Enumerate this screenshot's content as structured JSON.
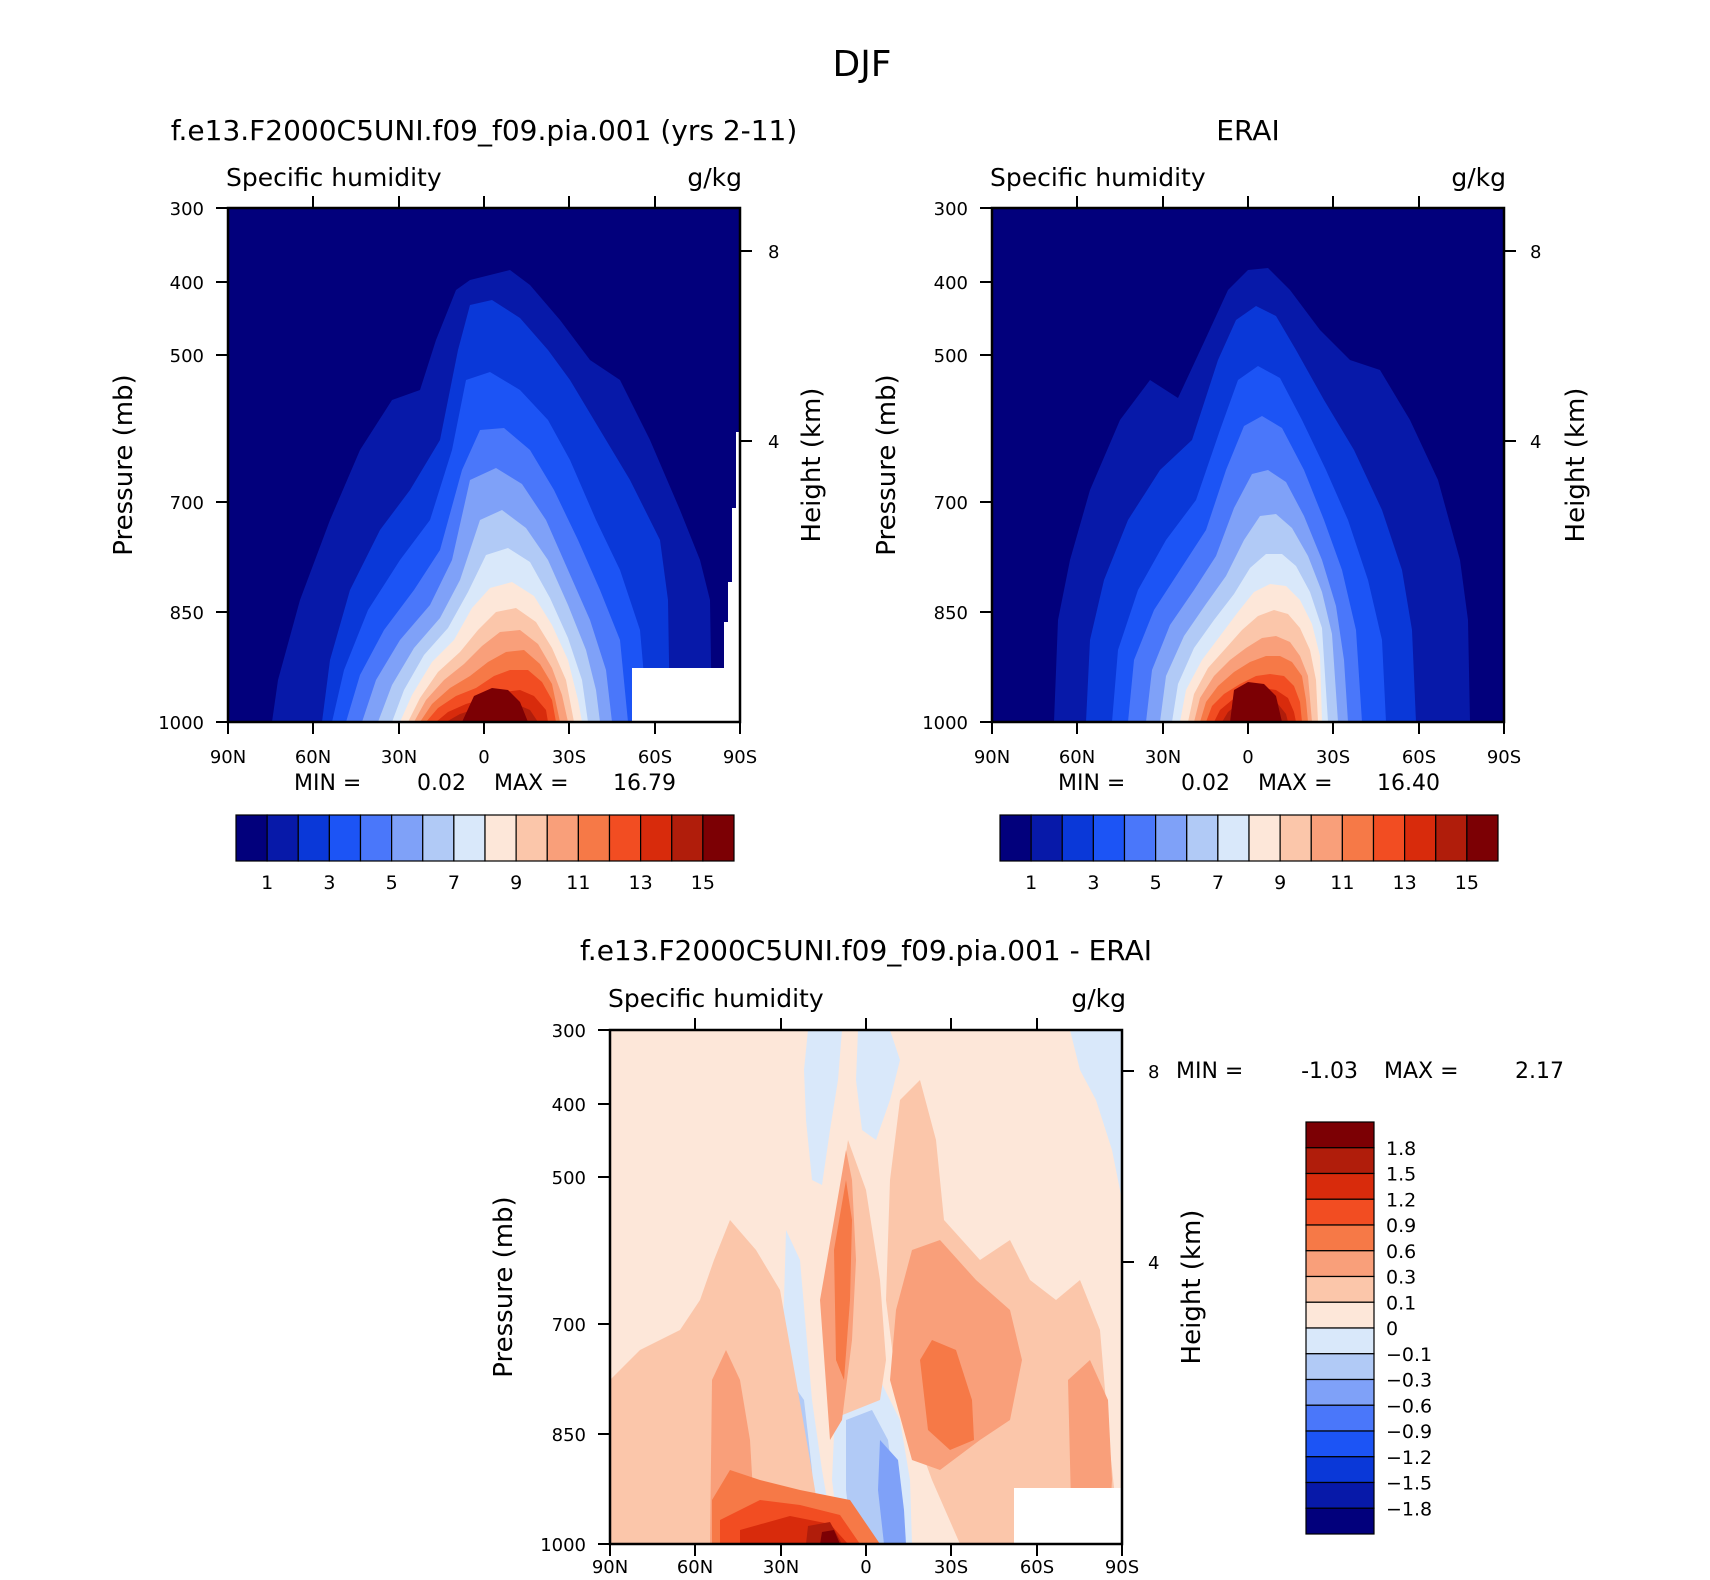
{
  "figure": {
    "title": "DJF"
  },
  "chart_data": [
    {
      "type": "heatmap",
      "panel": "model",
      "title": "f.e13.F2000C5UNI.f09_f09.pia.001 (yrs 2-11)",
      "variable": "Specific humidity",
      "units": "g/kg",
      "xlabel": "",
      "ylabel": "Pressure (mb)",
      "y2label": "Height (km)",
      "x_ticks": [
        "90N",
        "60N",
        "30N",
        "0",
        "30S",
        "60S",
        "90S"
      ],
      "y_ticks": [
        "300",
        "400",
        "500",
        "700",
        "850",
        "1000"
      ],
      "y2_ticks": [
        "8",
        "4"
      ],
      "y_scale": "log",
      "ylim": [
        1000,
        300
      ],
      "min": "0.02",
      "max": "16.79",
      "min_label": "MIN =",
      "max_label": "MAX =",
      "levels": [
        1,
        2,
        3,
        4,
        5,
        6,
        7,
        8,
        9,
        10,
        11,
        12,
        13,
        14,
        15
      ],
      "colorbar_labels": [
        "1",
        "3",
        "5",
        "7",
        "9",
        "11",
        "13",
        "15"
      ],
      "peak": {
        "lat": 0,
        "pressure": 1000,
        "value": 16.79
      },
      "legend_position": "bottom"
    },
    {
      "type": "heatmap",
      "panel": "obs",
      "title": "ERAI",
      "variable": "Specific humidity",
      "units": "g/kg",
      "xlabel": "",
      "ylabel": "Pressure (mb)",
      "y2label": "Height (km)",
      "x_ticks": [
        "90N",
        "60N",
        "30N",
        "0",
        "30S",
        "60S",
        "90S"
      ],
      "y_ticks": [
        "300",
        "400",
        "500",
        "700",
        "850",
        "1000"
      ],
      "y2_ticks": [
        "8",
        "4"
      ],
      "y_scale": "log",
      "ylim": [
        1000,
        300
      ],
      "min": "0.02",
      "max": "16.40",
      "min_label": "MIN =",
      "max_label": "MAX =",
      "levels": [
        1,
        2,
        3,
        4,
        5,
        6,
        7,
        8,
        9,
        10,
        11,
        12,
        13,
        14,
        15
      ],
      "colorbar_labels": [
        "1",
        "3",
        "5",
        "7",
        "9",
        "11",
        "13",
        "15"
      ],
      "peak": {
        "lat": 0,
        "pressure": 1000,
        "value": 16.4
      },
      "legend_position": "bottom"
    },
    {
      "type": "heatmap",
      "panel": "difference",
      "title": "f.e13.F2000C5UNI.f09_f09.pia.001 - ERAI",
      "variable": "Specific humidity",
      "units": "g/kg",
      "xlabel": "",
      "ylabel": "Pressure (mb)",
      "y2label": "Height (km)",
      "x_ticks": [
        "90N",
        "60N",
        "30N",
        "0",
        "30S",
        "60S",
        "90S"
      ],
      "y_ticks": [
        "300",
        "400",
        "500",
        "700",
        "850",
        "1000"
      ],
      "y2_ticks": [
        "8",
        "4"
      ],
      "y_scale": "log",
      "ylim": [
        1000,
        300
      ],
      "min": "-1.03",
      "max": "2.17",
      "min_label": "MIN =",
      "max_label": "MAX =",
      "levels": [
        -1.8,
        -1.5,
        -1.2,
        -0.9,
        -0.6,
        -0.3,
        -0.1,
        0,
        0.1,
        0.3,
        0.6,
        0.9,
        1.2,
        1.5,
        1.8
      ],
      "colorbar_labels": [
        "1.8",
        "1.5",
        "1.2",
        "0.9",
        "0.6",
        "0.3",
        "0.1",
        "0",
        "-0.1",
        "-0.3",
        "-0.6",
        "-0.9",
        "-1.2",
        "-1.5",
        "-1.8"
      ],
      "legend_position": "right"
    }
  ],
  "colors": {
    "colorbar": [
      "#02007c",
      "#0719a9",
      "#0a38d8",
      "#1c54f5",
      "#4a77fa",
      "#7fa1f8",
      "#b1caf6",
      "#d9e8fa",
      "#fde7d9",
      "#fbc6aa",
      "#f99f7a",
      "#f67947",
      "#f24d22",
      "#d82b0c",
      "#b01d0b",
      "#7c0004"
    ],
    "missing": "#ffffff"
  }
}
